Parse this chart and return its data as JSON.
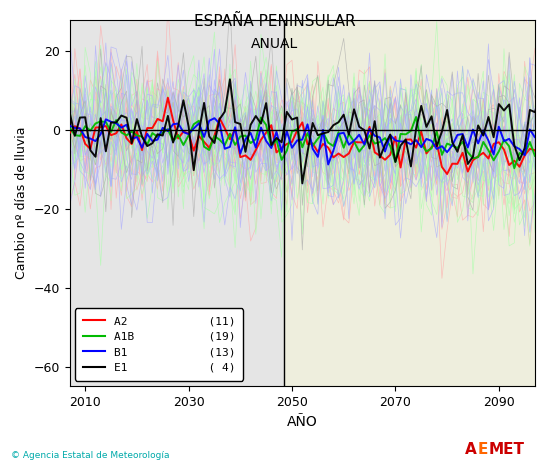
{
  "title": "ESPAÑA PENINSULAR",
  "subtitle": "ANUAL",
  "xlabel": "AÑO",
  "ylabel": "Cambio nº días de lluvia",
  "xlim": [
    2007,
    2097
  ],
  "ylim": [
    -65,
    28
  ],
  "yticks": [
    -60,
    -40,
    -20,
    0,
    20
  ],
  "xticks": [
    2010,
    2030,
    2050,
    2070,
    2090
  ],
  "vline_x": 2048.5,
  "year_start": 2006,
  "year_end": 2098,
  "scenario_colors": {
    "A2": "#ff0000",
    "A1B": "#00bb00",
    "B1": "#0000ff",
    "E1": "#000000"
  },
  "scenario_thin_colors": {
    "A2": "#ffaaaa",
    "A1B": "#aaffaa",
    "B1": "#aaaaff",
    "E1": "#aaaaaa"
  },
  "scenario_counts": {
    "A2": 11,
    "A1B": 19,
    "B1": 13,
    "E1": 4
  },
  "bg_left_color": "#e5e5e5",
  "bg_right_color": "#eeeedd",
  "copyright_text": "© Agencia Estatal de Meteorología",
  "seed": 42
}
